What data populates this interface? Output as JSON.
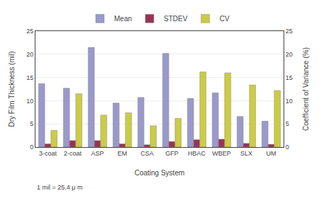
{
  "chart_data": {
    "type": "bar",
    "categories": [
      "3-coat",
      "2-coat",
      "ASP",
      "EM",
      "CSA",
      "GFP",
      "HBAC",
      "WBEP",
      "SLX",
      "UM"
    ],
    "series": [
      {
        "name": "Mean",
        "color": "#9999CC",
        "values": [
          13.7,
          12.7,
          21.5,
          9.5,
          10.7,
          20.2,
          10.5,
          11.7,
          6.6,
          5.6
        ]
      },
      {
        "name": "STDEV",
        "color": "#993355",
        "values": [
          0.7,
          1.4,
          1.4,
          0.7,
          0.5,
          1.2,
          1.6,
          1.7,
          0.8,
          0.6
        ]
      },
      {
        "name": "CV",
        "color": "#CCCC44",
        "values": [
          3.6,
          11.5,
          6.9,
          7.4,
          4.6,
          6.2,
          16.2,
          16.0,
          13.4,
          12.2
        ],
        "axis": "y2"
      }
    ],
    "xlabel": "Coating System",
    "ylabel": "Dry Film Thickness (mil)",
    "y2label": "Coefficient of Variance (%)",
    "ylim": [
      0,
      25
    ],
    "yticks": [
      0,
      5,
      10,
      15,
      20,
      25
    ],
    "y2lim": [
      0,
      25
    ],
    "y2ticks": [
      0,
      5,
      10,
      15,
      20,
      25
    ],
    "grid": true,
    "legend": "top",
    "annotations": [
      "1 mil = 25.4 μ m"
    ]
  }
}
